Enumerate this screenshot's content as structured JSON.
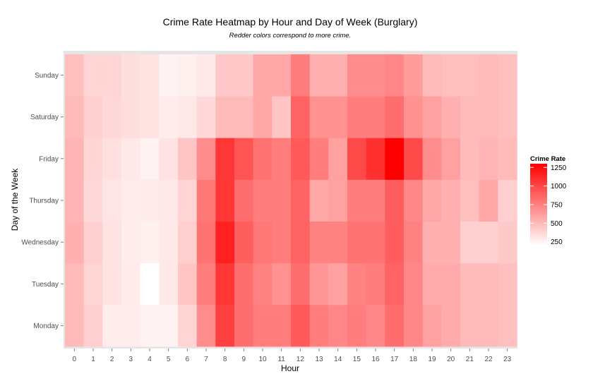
{
  "chart_data": {
    "type": "heatmap",
    "title": "Crime Rate Heatmap by Hour and Day of Week (Burglary)",
    "subtitle": "Redder colors correspond to more crime.",
    "xlabel": "Hour",
    "ylabel": "Day of the Week",
    "x": [
      "0",
      "1",
      "2",
      "3",
      "4",
      "5",
      "6",
      "7",
      "8",
      "9",
      "10",
      "11",
      "12",
      "13",
      "14",
      "15",
      "16",
      "17",
      "18",
      "19",
      "20",
      "21",
      "22",
      "23"
    ],
    "y": [
      "Monday",
      "Tuesday",
      "Wednesday",
      "Thursday",
      "Friday",
      "Saturday",
      "Sunday"
    ],
    "values": [
      [
        520,
        440,
        320,
        320,
        300,
        300,
        420,
        700,
        1000,
        820,
        760,
        760,
        900,
        760,
        720,
        760,
        720,
        820,
        720,
        620,
        580,
        520,
        520,
        500
      ],
      [
        520,
        420,
        360,
        330,
        250,
        340,
        480,
        760,
        1040,
        820,
        740,
        680,
        820,
        660,
        620,
        740,
        760,
        860,
        720,
        580,
        580,
        520,
        520,
        500
      ],
      [
        560,
        440,
        360,
        320,
        310,
        340,
        440,
        800,
        1120,
        880,
        780,
        760,
        860,
        740,
        740,
        800,
        800,
        880,
        740,
        560,
        560,
        440,
        440,
        460
      ],
      [
        540,
        400,
        350,
        320,
        330,
        340,
        420,
        780,
        1040,
        820,
        760,
        760,
        860,
        600,
        620,
        760,
        760,
        880,
        720,
        600,
        560,
        500,
        600,
        440
      ],
      [
        540,
        420,
        370,
        340,
        300,
        360,
        480,
        700,
        1040,
        920,
        800,
        760,
        900,
        760,
        620,
        960,
        1060,
        1250,
        960,
        700,
        620,
        520,
        540,
        520
      ],
      [
        520,
        440,
        400,
        380,
        360,
        320,
        340,
        400,
        520,
        520,
        600,
        480,
        860,
        680,
        680,
        760,
        760,
        820,
        680,
        620,
        560,
        520,
        520,
        500
      ],
      [
        500,
        420,
        420,
        380,
        360,
        300,
        310,
        340,
        460,
        460,
        600,
        600,
        760,
        560,
        560,
        700,
        700,
        720,
        640,
        520,
        500,
        500,
        520,
        500
      ]
    ],
    "colorbar": {
      "title": "Crime Rate",
      "ticks": [
        250,
        500,
        750,
        1000,
        1250
      ],
      "min": 250,
      "max": 1250,
      "low_color": "#ffffff",
      "high_color": "#ff0000"
    },
    "panel_color": "#e5e5e5",
    "legend_position": "right"
  }
}
